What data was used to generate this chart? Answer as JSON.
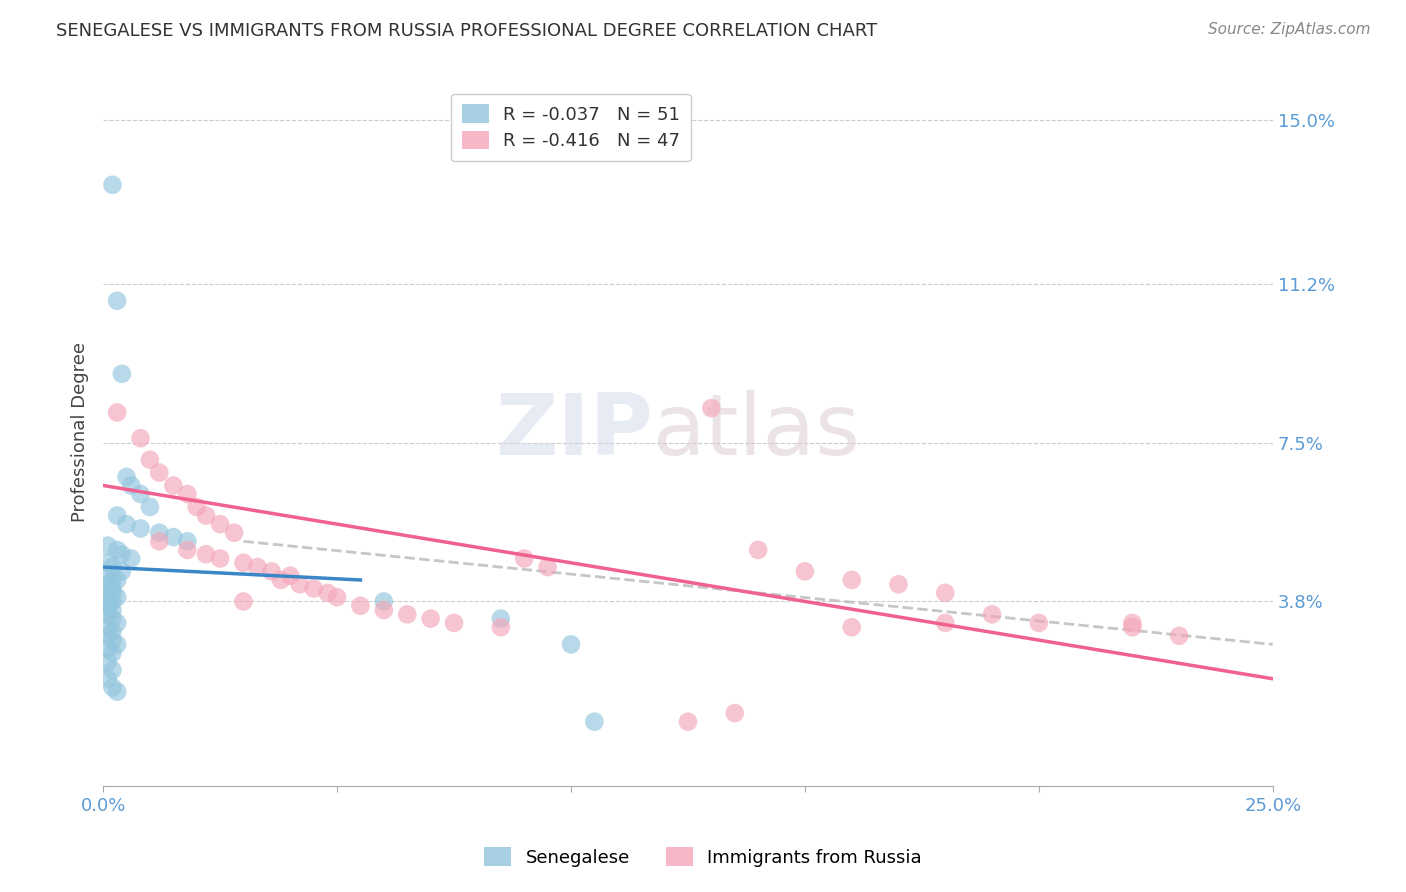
{
  "title": "SENEGALESE VS IMMIGRANTS FROM RUSSIA PROFESSIONAL DEGREE CORRELATION CHART",
  "source": "Source: ZipAtlas.com",
  "ylabel": "Professional Degree",
  "xlim": [
    0.0,
    0.25
  ],
  "ylim": [
    -0.005,
    0.16
  ],
  "ytick_labels_right": [
    "15.0%",
    "11.2%",
    "7.5%",
    "3.8%"
  ],
  "ytick_vals_right": [
    0.15,
    0.112,
    0.075,
    0.038
  ],
  "legend_blue_R": "-0.037",
  "legend_blue_N": "51",
  "legend_pink_R": "-0.416",
  "legend_pink_N": "47",
  "color_blue": "#92c5de",
  "color_pink": "#f4a7b9",
  "color_blue_line": "#3a87c8",
  "color_pink_line": "#f06090",
  "color_dashed": "#c0c0c0",
  "watermark_zip": "ZIP",
  "watermark_atlas": "atlas",
  "blue_line_x": [
    0.0,
    0.055
  ],
  "blue_line_y": [
    0.046,
    0.043
  ],
  "pink_line_x": [
    0.0,
    0.25
  ],
  "pink_line_y": [
    0.065,
    0.02
  ],
  "dashed_line_x": [
    0.03,
    0.25
  ],
  "dashed_line_y": [
    0.052,
    0.028
  ],
  "blue_points": [
    [
      0.002,
      0.135
    ],
    [
      0.003,
      0.108
    ],
    [
      0.004,
      0.091
    ],
    [
      0.005,
      0.067
    ],
    [
      0.006,
      0.065
    ],
    [
      0.008,
      0.063
    ],
    [
      0.01,
      0.06
    ],
    [
      0.003,
      0.058
    ],
    [
      0.005,
      0.056
    ],
    [
      0.008,
      0.055
    ],
    [
      0.012,
      0.054
    ],
    [
      0.015,
      0.053
    ],
    [
      0.018,
      0.052
    ],
    [
      0.001,
      0.051
    ],
    [
      0.003,
      0.05
    ],
    [
      0.004,
      0.049
    ],
    [
      0.006,
      0.048
    ],
    [
      0.001,
      0.047
    ],
    [
      0.002,
      0.046
    ],
    [
      0.004,
      0.045
    ],
    [
      0.001,
      0.044
    ],
    [
      0.002,
      0.043
    ],
    [
      0.003,
      0.043
    ],
    [
      0.001,
      0.042
    ],
    [
      0.002,
      0.041
    ],
    [
      0.001,
      0.04
    ],
    [
      0.002,
      0.04
    ],
    [
      0.003,
      0.039
    ],
    [
      0.001,
      0.038
    ],
    [
      0.002,
      0.038
    ],
    [
      0.001,
      0.037
    ],
    [
      0.002,
      0.036
    ],
    [
      0.001,
      0.035
    ],
    [
      0.002,
      0.034
    ],
    [
      0.003,
      0.033
    ],
    [
      0.001,
      0.032
    ],
    [
      0.002,
      0.031
    ],
    [
      0.001,
      0.03
    ],
    [
      0.002,
      0.029
    ],
    [
      0.003,
      0.028
    ],
    [
      0.001,
      0.027
    ],
    [
      0.002,
      0.026
    ],
    [
      0.001,
      0.024
    ],
    [
      0.002,
      0.022
    ],
    [
      0.06,
      0.038
    ],
    [
      0.085,
      0.034
    ],
    [
      0.1,
      0.028
    ],
    [
      0.105,
      0.01
    ],
    [
      0.001,
      0.02
    ],
    [
      0.002,
      0.018
    ],
    [
      0.003,
      0.017
    ]
  ],
  "pink_points": [
    [
      0.003,
      0.082
    ],
    [
      0.008,
      0.076
    ],
    [
      0.01,
      0.071
    ],
    [
      0.012,
      0.068
    ],
    [
      0.015,
      0.065
    ],
    [
      0.018,
      0.063
    ],
    [
      0.02,
      0.06
    ],
    [
      0.022,
      0.058
    ],
    [
      0.025,
      0.056
    ],
    [
      0.028,
      0.054
    ],
    [
      0.012,
      0.052
    ],
    [
      0.018,
      0.05
    ],
    [
      0.022,
      0.049
    ],
    [
      0.025,
      0.048
    ],
    [
      0.03,
      0.047
    ],
    [
      0.033,
      0.046
    ],
    [
      0.036,
      0.045
    ],
    [
      0.04,
      0.044
    ],
    [
      0.038,
      0.043
    ],
    [
      0.042,
      0.042
    ],
    [
      0.045,
      0.041
    ],
    [
      0.048,
      0.04
    ],
    [
      0.05,
      0.039
    ],
    [
      0.03,
      0.038
    ],
    [
      0.055,
      0.037
    ],
    [
      0.06,
      0.036
    ],
    [
      0.065,
      0.035
    ],
    [
      0.07,
      0.034
    ],
    [
      0.075,
      0.033
    ],
    [
      0.085,
      0.032
    ],
    [
      0.13,
      0.083
    ],
    [
      0.09,
      0.048
    ],
    [
      0.095,
      0.046
    ],
    [
      0.14,
      0.05
    ],
    [
      0.15,
      0.045
    ],
    [
      0.16,
      0.043
    ],
    [
      0.17,
      0.042
    ],
    [
      0.18,
      0.04
    ],
    [
      0.19,
      0.035
    ],
    [
      0.2,
      0.033
    ],
    [
      0.22,
      0.032
    ],
    [
      0.23,
      0.03
    ],
    [
      0.18,
      0.033
    ],
    [
      0.125,
      0.01
    ],
    [
      0.135,
      0.012
    ],
    [
      0.16,
      0.032
    ],
    [
      0.22,
      0.033
    ]
  ]
}
